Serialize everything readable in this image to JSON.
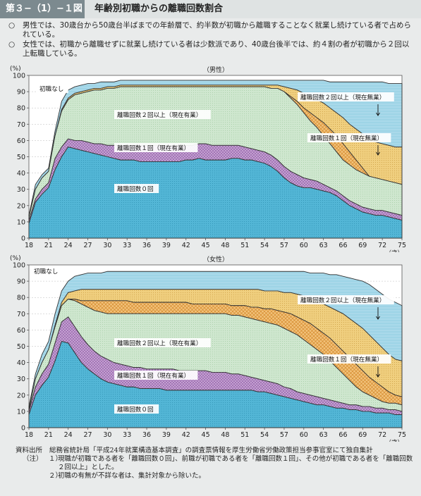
{
  "header": {
    "figure_no": "第３−（1）−１図",
    "title": "年齢別初職からの離職回数割合"
  },
  "summary": [
    {
      "mark": "○",
      "text": "男性では、30歳台から50歳台半ばまでの年齢層で、約半数が初職から離職することなく就業し続けている者で占められている。"
    },
    {
      "mark": "○",
      "text": "女性では、初職から離職せずに就業し続けている者は少数派であり、40歳台後半では、約４割の者が初職から２回以上転職している。"
    }
  ],
  "colors": {
    "r0": "#53b6d6",
    "r1": "#c8a6d4",
    "r2": "#cfe7cf",
    "r2cur": "#f2c27a",
    "r1cur": "#f0cf7f",
    "none": "#a9d9ea"
  },
  "chart_data": [
    {
      "type": "area",
      "title": "（男性）",
      "ylabel": "(%)",
      "xunit": "（歳）",
      "x": [
        18,
        19,
        20,
        21,
        22,
        23,
        24,
        25,
        26,
        27,
        28,
        29,
        30,
        31,
        32,
        33,
        34,
        35,
        36,
        37,
        38,
        39,
        40,
        41,
        42,
        43,
        44,
        45,
        46,
        47,
        48,
        49,
        50,
        51,
        52,
        53,
        54,
        55,
        56,
        57,
        58,
        59,
        60,
        61,
        62,
        63,
        64,
        65,
        66,
        67,
        68,
        69,
        70,
        71,
        72,
        73,
        74,
        75
      ],
      "xticks": [
        18,
        21,
        24,
        27,
        30,
        33,
        36,
        39,
        42,
        45,
        48,
        51,
        54,
        57,
        60,
        63,
        66,
        69,
        72,
        75
      ],
      "ylim": [
        0,
        100
      ],
      "yticks": [
        0,
        10,
        20,
        30,
        40,
        50,
        60,
        70,
        80,
        90,
        100
      ],
      "series": [
        {
          "name": "離職回数０回",
          "values": [
            9,
            22,
            27,
            31,
            42,
            50,
            56,
            55,
            54,
            53,
            52,
            51,
            50,
            49,
            48,
            48,
            48,
            47,
            47,
            47,
            47,
            47,
            47,
            47,
            48,
            48,
            49,
            48,
            48,
            48,
            48,
            49,
            49,
            48,
            48,
            47,
            46,
            44,
            41,
            37,
            34,
            32,
            31,
            31,
            30,
            29,
            28,
            26,
            23,
            20,
            18,
            16,
            15,
            14,
            14,
            13,
            12,
            11
          ]
        },
        {
          "name": "離職回数１回（現在有業）",
          "values": [
            11,
            24,
            30,
            34,
            49,
            56,
            61,
            60,
            60,
            59,
            58,
            58,
            57,
            57,
            57,
            57,
            57,
            57,
            57,
            57,
            57,
            57,
            57,
            57,
            57,
            57,
            58,
            58,
            57,
            57,
            57,
            57,
            57,
            56,
            55,
            54,
            53,
            51,
            48,
            44,
            41,
            39,
            37,
            36,
            35,
            33,
            31,
            29,
            26,
            23,
            21,
            19,
            18,
            17,
            17,
            16,
            15,
            14
          ]
        },
        {
          "name": "離職回数２回以上（現在有業）",
          "values": [
            13,
            30,
            37,
            41,
            63,
            78,
            85,
            88,
            89,
            90,
            91,
            91,
            92,
            92,
            93,
            93,
            93,
            93,
            93,
            93,
            93,
            93,
            93,
            93,
            93,
            93,
            93,
            93,
            93,
            93,
            93,
            93,
            93,
            93,
            93,
            93,
            93,
            92,
            92,
            90,
            86,
            82,
            77,
            72,
            68,
            63,
            58,
            53,
            48,
            45,
            42,
            40,
            38,
            37,
            36,
            35,
            34,
            33
          ]
        },
        {
          "name": "離職回数１回（現在無業）",
          "values": [
            13,
            30,
            37,
            41,
            63,
            78,
            85,
            88,
            89,
            90,
            91,
            91,
            92,
            92,
            93,
            93,
            93,
            93,
            93,
            93,
            93,
            93,
            93,
            93,
            93,
            93,
            93,
            93,
            93,
            93,
            93,
            93,
            93,
            93,
            93,
            93,
            93,
            92,
            92,
            90,
            87,
            84,
            80,
            77,
            74,
            71,
            67,
            63,
            58,
            53,
            48,
            43,
            38,
            34,
            31,
            28,
            26,
            24
          ]
        },
        {
          "name": "離職回数２回以上（現在無業）",
          "values": [
            13,
            30,
            37,
            41,
            63,
            79,
            86,
            89,
            90,
            91,
            92,
            92,
            93,
            93,
            94,
            94,
            94,
            94,
            94,
            94,
            94,
            94,
            94,
            94,
            94,
            94,
            94,
            94,
            94,
            94,
            94,
            94,
            94,
            94,
            94,
            94,
            94,
            94,
            94,
            93,
            92,
            91,
            89,
            87,
            85,
            83,
            80,
            77,
            74,
            70,
            67,
            64,
            61,
            59,
            58,
            57,
            56,
            56
          ]
        },
        {
          "name": "初職なし",
          "values": [
            14,
            33,
            39,
            43,
            66,
            84,
            91,
            93,
            94,
            95,
            95,
            96,
            96,
            96,
            97,
            97,
            97,
            97,
            97,
            97,
            97,
            97,
            97,
            97,
            97,
            97,
            97,
            97,
            97,
            97,
            97,
            97,
            97,
            97,
            97,
            97,
            97,
            97,
            97,
            97,
            97,
            97,
            97,
            97,
            97,
            97,
            96,
            96,
            96,
            96,
            96,
            96,
            96,
            96,
            96,
            95,
            95,
            95
          ]
        }
      ]
    },
    {
      "type": "area",
      "title": "（女性）",
      "ylabel": "(%)",
      "xunit": "（歳）",
      "x": [
        18,
        19,
        20,
        21,
        22,
        23,
        24,
        25,
        26,
        27,
        28,
        29,
        30,
        31,
        32,
        33,
        34,
        35,
        36,
        37,
        38,
        39,
        40,
        41,
        42,
        43,
        44,
        45,
        46,
        47,
        48,
        49,
        50,
        51,
        52,
        53,
        54,
        55,
        56,
        57,
        58,
        59,
        60,
        61,
        62,
        63,
        64,
        65,
        66,
        67,
        68,
        69,
        70,
        71,
        72,
        73,
        74,
        75
      ],
      "xticks": [
        18,
        21,
        24,
        27,
        30,
        33,
        36,
        39,
        42,
        45,
        48,
        51,
        54,
        57,
        60,
        63,
        66,
        69,
        72,
        75
      ],
      "ylim": [
        0,
        100
      ],
      "yticks": [
        0,
        10,
        20,
        30,
        40,
        50,
        60,
        70,
        80,
        90,
        100
      ],
      "series": [
        {
          "name": "離職回数０回",
          "values": [
            8,
            20,
            26,
            31,
            41,
            53,
            52,
            46,
            40,
            36,
            33,
            30,
            28,
            27,
            26,
            25,
            25,
            24,
            24,
            24,
            24,
            23,
            23,
            23,
            23,
            23,
            23,
            23,
            23,
            23,
            23,
            23,
            23,
            23,
            23,
            22,
            22,
            21,
            20,
            19,
            18,
            17,
            16,
            15,
            14,
            14,
            13,
            12,
            12,
            11,
            11,
            10,
            10,
            9,
            9,
            9,
            8,
            8
          ]
        },
        {
          "name": "離職回数１回（現在有業）",
          "values": [
            10,
            25,
            33,
            39,
            52,
            65,
            68,
            62,
            56,
            51,
            47,
            44,
            42,
            40,
            39,
            38,
            37,
            37,
            36,
            36,
            36,
            36,
            36,
            35,
            35,
            35,
            35,
            35,
            34,
            34,
            34,
            33,
            33,
            32,
            31,
            30,
            29,
            28,
            27,
            25,
            24,
            22,
            21,
            20,
            19,
            18,
            17,
            16,
            15,
            14,
            14,
            13,
            13,
            12,
            12,
            11,
            11,
            10
          ]
        },
        {
          "name": "離職回数２回以上（現在有業）",
          "values": [
            11,
            30,
            40,
            48,
            62,
            75,
            79,
            78,
            76,
            74,
            72,
            71,
            70,
            70,
            70,
            70,
            70,
            70,
            70,
            70,
            70,
            70,
            70,
            70,
            70,
            70,
            70,
            70,
            70,
            70,
            70,
            69,
            69,
            68,
            67,
            66,
            65,
            64,
            63,
            61,
            59,
            57,
            54,
            51,
            48,
            45,
            41,
            37,
            33,
            29,
            25,
            22,
            20,
            18,
            16,
            15,
            15,
            14
          ]
        },
        {
          "name": "離職回数１回（現在無業）",
          "values": [
            11,
            30,
            40,
            48,
            62,
            75,
            79,
            79,
            78,
            78,
            78,
            78,
            78,
            78,
            78,
            78,
            77,
            77,
            77,
            77,
            77,
            77,
            77,
            77,
            77,
            76,
            76,
            76,
            76,
            76,
            76,
            75,
            75,
            75,
            74,
            74,
            73,
            73,
            72,
            71,
            70,
            68,
            66,
            64,
            61,
            58,
            55,
            51,
            47,
            43,
            39,
            35,
            31,
            28,
            25,
            22,
            20,
            19
          ]
        },
        {
          "name": "離職回数２回以上（現在無業）",
          "values": [
            11,
            30,
            40,
            48,
            63,
            77,
            83,
            84,
            85,
            85,
            85,
            85,
            85,
            85,
            85,
            85,
            85,
            85,
            85,
            85,
            85,
            85,
            85,
            85,
            85,
            85,
            85,
            85,
            85,
            85,
            85,
            85,
            85,
            85,
            85,
            85,
            84,
            84,
            84,
            83,
            83,
            82,
            81,
            80,
            78,
            76,
            74,
            72,
            70,
            67,
            64,
            61,
            57,
            53,
            49,
            45,
            42,
            41
          ]
        },
        {
          "name": "初職なし",
          "values": [
            13,
            33,
            45,
            53,
            70,
            84,
            90,
            93,
            94,
            95,
            95,
            95,
            96,
            96,
            96,
            96,
            96,
            96,
            96,
            96,
            96,
            96,
            96,
            96,
            96,
            96,
            96,
            96,
            96,
            96,
            96,
            96,
            96,
            96,
            96,
            96,
            96,
            96,
            96,
            96,
            96,
            96,
            96,
            95,
            95,
            95,
            94,
            94,
            93,
            92,
            91,
            90,
            88,
            85,
            82,
            79,
            77,
            75
          ]
        }
      ]
    }
  ],
  "labels_male": [
    {
      "text": "初職なし"
    },
    {
      "text": "離職回数２回以上（現在有業）"
    },
    {
      "text": "離職回数１回（現在有業）"
    },
    {
      "text": "離職回数０回"
    },
    {
      "text": "離職回数２回以上（現在無業）"
    },
    {
      "text": "離職回数１回（現在無業）"
    }
  ],
  "labels_female": [
    {
      "text": "初職なし"
    },
    {
      "text": "離職回数２回以上（現在有業）"
    },
    {
      "text": "離職回数１回（現在有業）"
    },
    {
      "text": "離職回数０回"
    },
    {
      "text": "離職回数２回以上（現在無業）"
    },
    {
      "text": "離職回数１回（現在無業）"
    }
  ],
  "notes": {
    "source_label": "資料出所",
    "source_text": "総務省統計局「平成24年就業構造基本調査」の調査票情報を厚生労働省労働政策担当参事官室にて独自集計",
    "note_label": "（注）",
    "items": [
      {
        "no": "１）",
        "text": "現職が初職である者を「離職回数０回」、前職が初職である者を「離職回数１回」、その他が初職である者を「離職回数２回以上」とした。"
      },
      {
        "no": "２）",
        "text": "初職の有無が不詳な者は、集計対象から除いた。"
      }
    ]
  }
}
